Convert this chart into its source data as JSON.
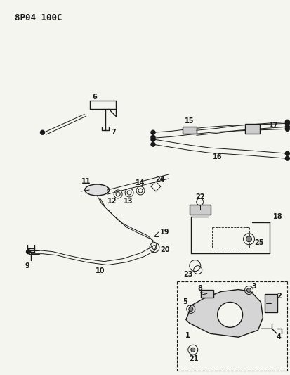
{
  "title": "8P04 100C",
  "bg_color": "#f5f5f0",
  "line_color": "#1a1a1a",
  "title_fontsize": 9,
  "label_fontsize": 7,
  "figsize": [
    4.14,
    5.33
  ],
  "dpi": 100
}
